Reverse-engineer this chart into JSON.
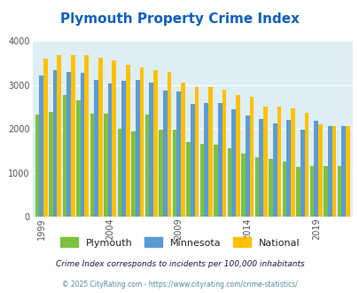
{
  "title": "Plymouth Property Crime Index",
  "title_color": "#1060c0",
  "years": [
    1999,
    2000,
    2001,
    2002,
    2003,
    2004,
    2005,
    2006,
    2007,
    2008,
    2009,
    2010,
    2011,
    2012,
    2013,
    2014,
    2015,
    2016,
    2017,
    2018,
    2019,
    2020,
    2021
  ],
  "plymouth": [
    2330,
    2390,
    2770,
    2650,
    2340,
    2340,
    2010,
    1950,
    2330,
    1980,
    1980,
    1710,
    1660,
    1650,
    1560,
    1430,
    1350,
    1310,
    1260,
    1140,
    1160,
    1160,
    1160
  ],
  "minnesota": [
    3210,
    3340,
    3290,
    3270,
    3110,
    3040,
    3100,
    3110,
    3060,
    2870,
    2860,
    2560,
    2590,
    2590,
    2450,
    2310,
    2220,
    2120,
    2200,
    1990,
    2180,
    2060,
    2060
  ],
  "national": [
    3610,
    3680,
    3680,
    3680,
    3620,
    3560,
    3460,
    3390,
    3340,
    3300,
    3060,
    2960,
    2950,
    2890,
    2770,
    2740,
    2510,
    2500,
    2460,
    2360,
    2100,
    2060,
    2060
  ],
  "plymouth_color": "#7ec13e",
  "minnesota_color": "#5b9bd5",
  "national_color": "#ffc000",
  "bg_color": "#deeef5",
  "ylim": [
    0,
    4000
  ],
  "yticks": [
    0,
    1000,
    2000,
    3000,
    4000
  ],
  "xlabel_years": [
    1999,
    2004,
    2009,
    2014,
    2019
  ],
  "legend_labels": [
    "Plymouth",
    "Minnesota",
    "National"
  ],
  "footnote1": "Crime Index corresponds to incidents per 100,000 inhabitants",
  "footnote2": "© 2025 CityRating.com - https://www.cityrating.com/crime-statistics/",
  "footnote1_color": "#1a1a4a",
  "footnote2_color": "#5588aa"
}
